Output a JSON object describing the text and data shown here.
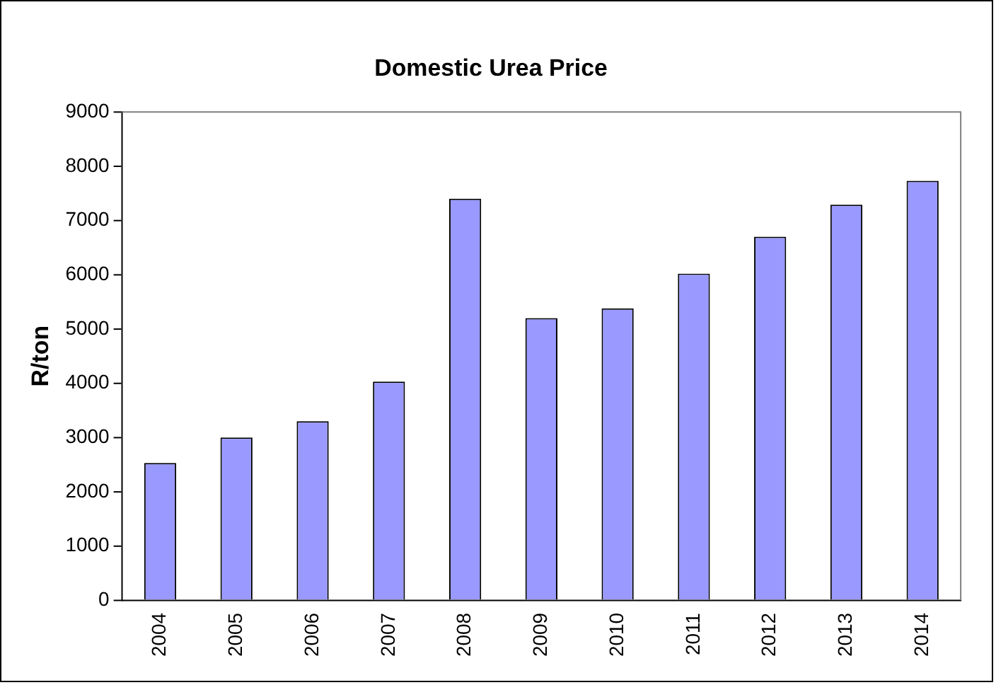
{
  "chart_data": {
    "type": "bar",
    "title": "Domestic Urea Price",
    "ylabel": "R/ton",
    "categories": [
      "2004",
      "2005",
      "2006",
      "2007",
      "2008",
      "2009",
      "2010",
      "2011",
      "2012",
      "2013",
      "2014"
    ],
    "values": [
      2530,
      3000,
      3300,
      4030,
      7400,
      5200,
      5380,
      6020,
      6700,
      7290,
      7730
    ],
    "color": "#9999ff",
    "ylim": [
      0,
      9000
    ],
    "yticks": [
      0,
      1000,
      2000,
      3000,
      4000,
      5000,
      6000,
      7000,
      8000,
      9000
    ],
    "grid": false,
    "legend": false
  }
}
